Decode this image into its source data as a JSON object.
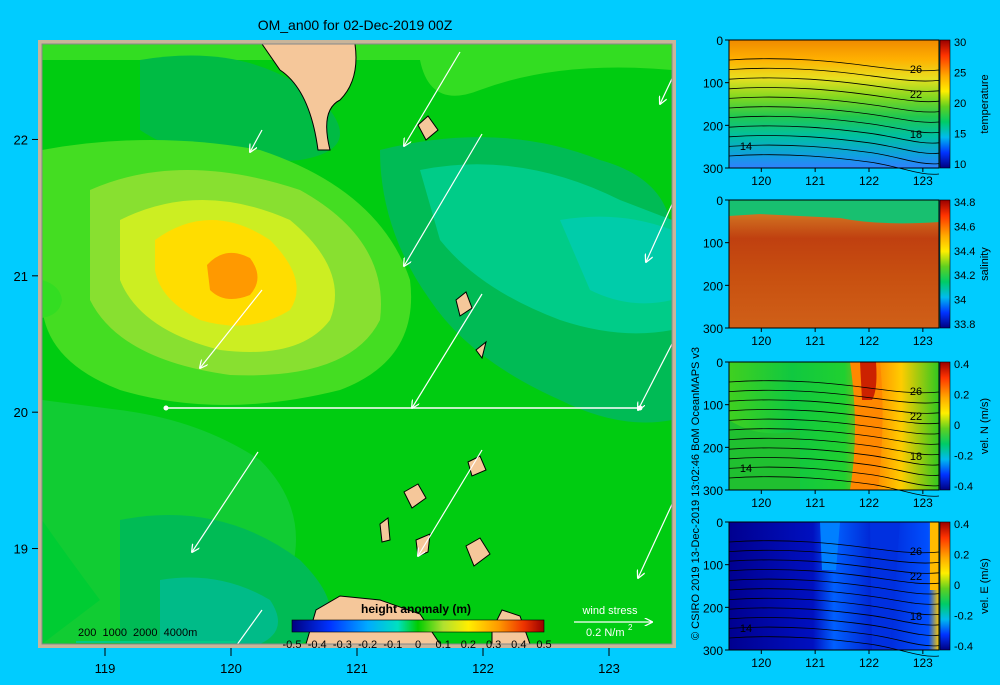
{
  "page": {
    "background": "#00ccff"
  },
  "map": {
    "title": "OM_an00 for 02-Dec-2019 00Z",
    "x_ticks": [
      "119",
      "120",
      "121",
      "122",
      "123"
    ],
    "y_ticks": [
      "22",
      "21",
      "20",
      "19"
    ],
    "depth_scale_label": "200  1000  2000  4000m",
    "colorbar": {
      "title": "height anomaly (m)",
      "ticks": [
        "-0.5",
        "-0.4",
        "-0.3",
        "-0.2",
        "-0.1",
        "0",
        "0.1",
        "0.2",
        "0.3",
        "0.4",
        "0.5"
      ]
    },
    "wind_legend": {
      "title": "wind stress",
      "value": "0.2 N/m",
      "exponent": "2"
    }
  },
  "chart_data": [
    {
      "type": "heatmap",
      "title": "OM_an00 for 02-Dec-2019 00Z",
      "xlabel": "",
      "ylabel": "",
      "xlim": [
        118.5,
        123.5
      ],
      "ylim": [
        18.3,
        22.7
      ],
      "colorbar_label": "height anomaly (m)",
      "colorbar_range": [
        -0.5,
        0.5
      ],
      "anomaly_max": {
        "lon": 120.0,
        "lat": 21.0,
        "value": 0.3
      },
      "section_line": {
        "lat": 20.0,
        "lon_start": 119.5,
        "lon_end": 123.2
      }
    },
    {
      "type": "heatmap",
      "title": "",
      "xlabel": "",
      "ylabel": "temperature",
      "x_ticks": [
        "120",
        "121",
        "122",
        "123"
      ],
      "y_ticks": [
        "0",
        "100",
        "200",
        "300"
      ],
      "colorbar_ticks": [
        "30",
        "25",
        "20",
        "15",
        "10"
      ],
      "colorbar_range": [
        10,
        30
      ],
      "contour_labels": [
        "26",
        "22",
        "18",
        "14"
      ]
    },
    {
      "type": "heatmap",
      "title": "",
      "xlabel": "",
      "ylabel": "salinity",
      "x_ticks": [
        "120",
        "121",
        "122",
        "123"
      ],
      "y_ticks": [
        "0",
        "100",
        "200",
        "300"
      ],
      "colorbar_ticks": [
        "34.8",
        "34.6",
        "34.4",
        "34.2",
        "34",
        "33.8"
      ],
      "colorbar_range": [
        33.8,
        34.8
      ],
      "contour_labels": []
    },
    {
      "type": "heatmap",
      "title": "",
      "xlabel": "",
      "ylabel": "vel. N (m/s)",
      "x_ticks": [
        "120",
        "121",
        "122",
        "123"
      ],
      "y_ticks": [
        "0",
        "100",
        "200",
        "300"
      ],
      "colorbar_ticks": [
        "0.4",
        "0.2",
        "0",
        "-0.2",
        "-0.4"
      ],
      "colorbar_range": [
        -0.4,
        0.4
      ],
      "contour_labels": [
        "26",
        "22",
        "18",
        "14"
      ]
    },
    {
      "type": "heatmap",
      "title": "",
      "xlabel": "",
      "ylabel": "vel. E (m/s)",
      "x_ticks": [
        "120",
        "121",
        "122",
        "123"
      ],
      "y_ticks": [
        "0",
        "100",
        "200",
        "300"
      ],
      "colorbar_ticks": [
        "0.4",
        "0.2",
        "0",
        "-0.2",
        "-0.4"
      ],
      "colorbar_range": [
        -0.4,
        0.4
      ],
      "contour_labels": [
        "26",
        "22",
        "18",
        "14"
      ]
    }
  ],
  "credit": "© CSIRO 2019  13-Dec-2019 13:02:46 BoM OceanMAPS v3"
}
